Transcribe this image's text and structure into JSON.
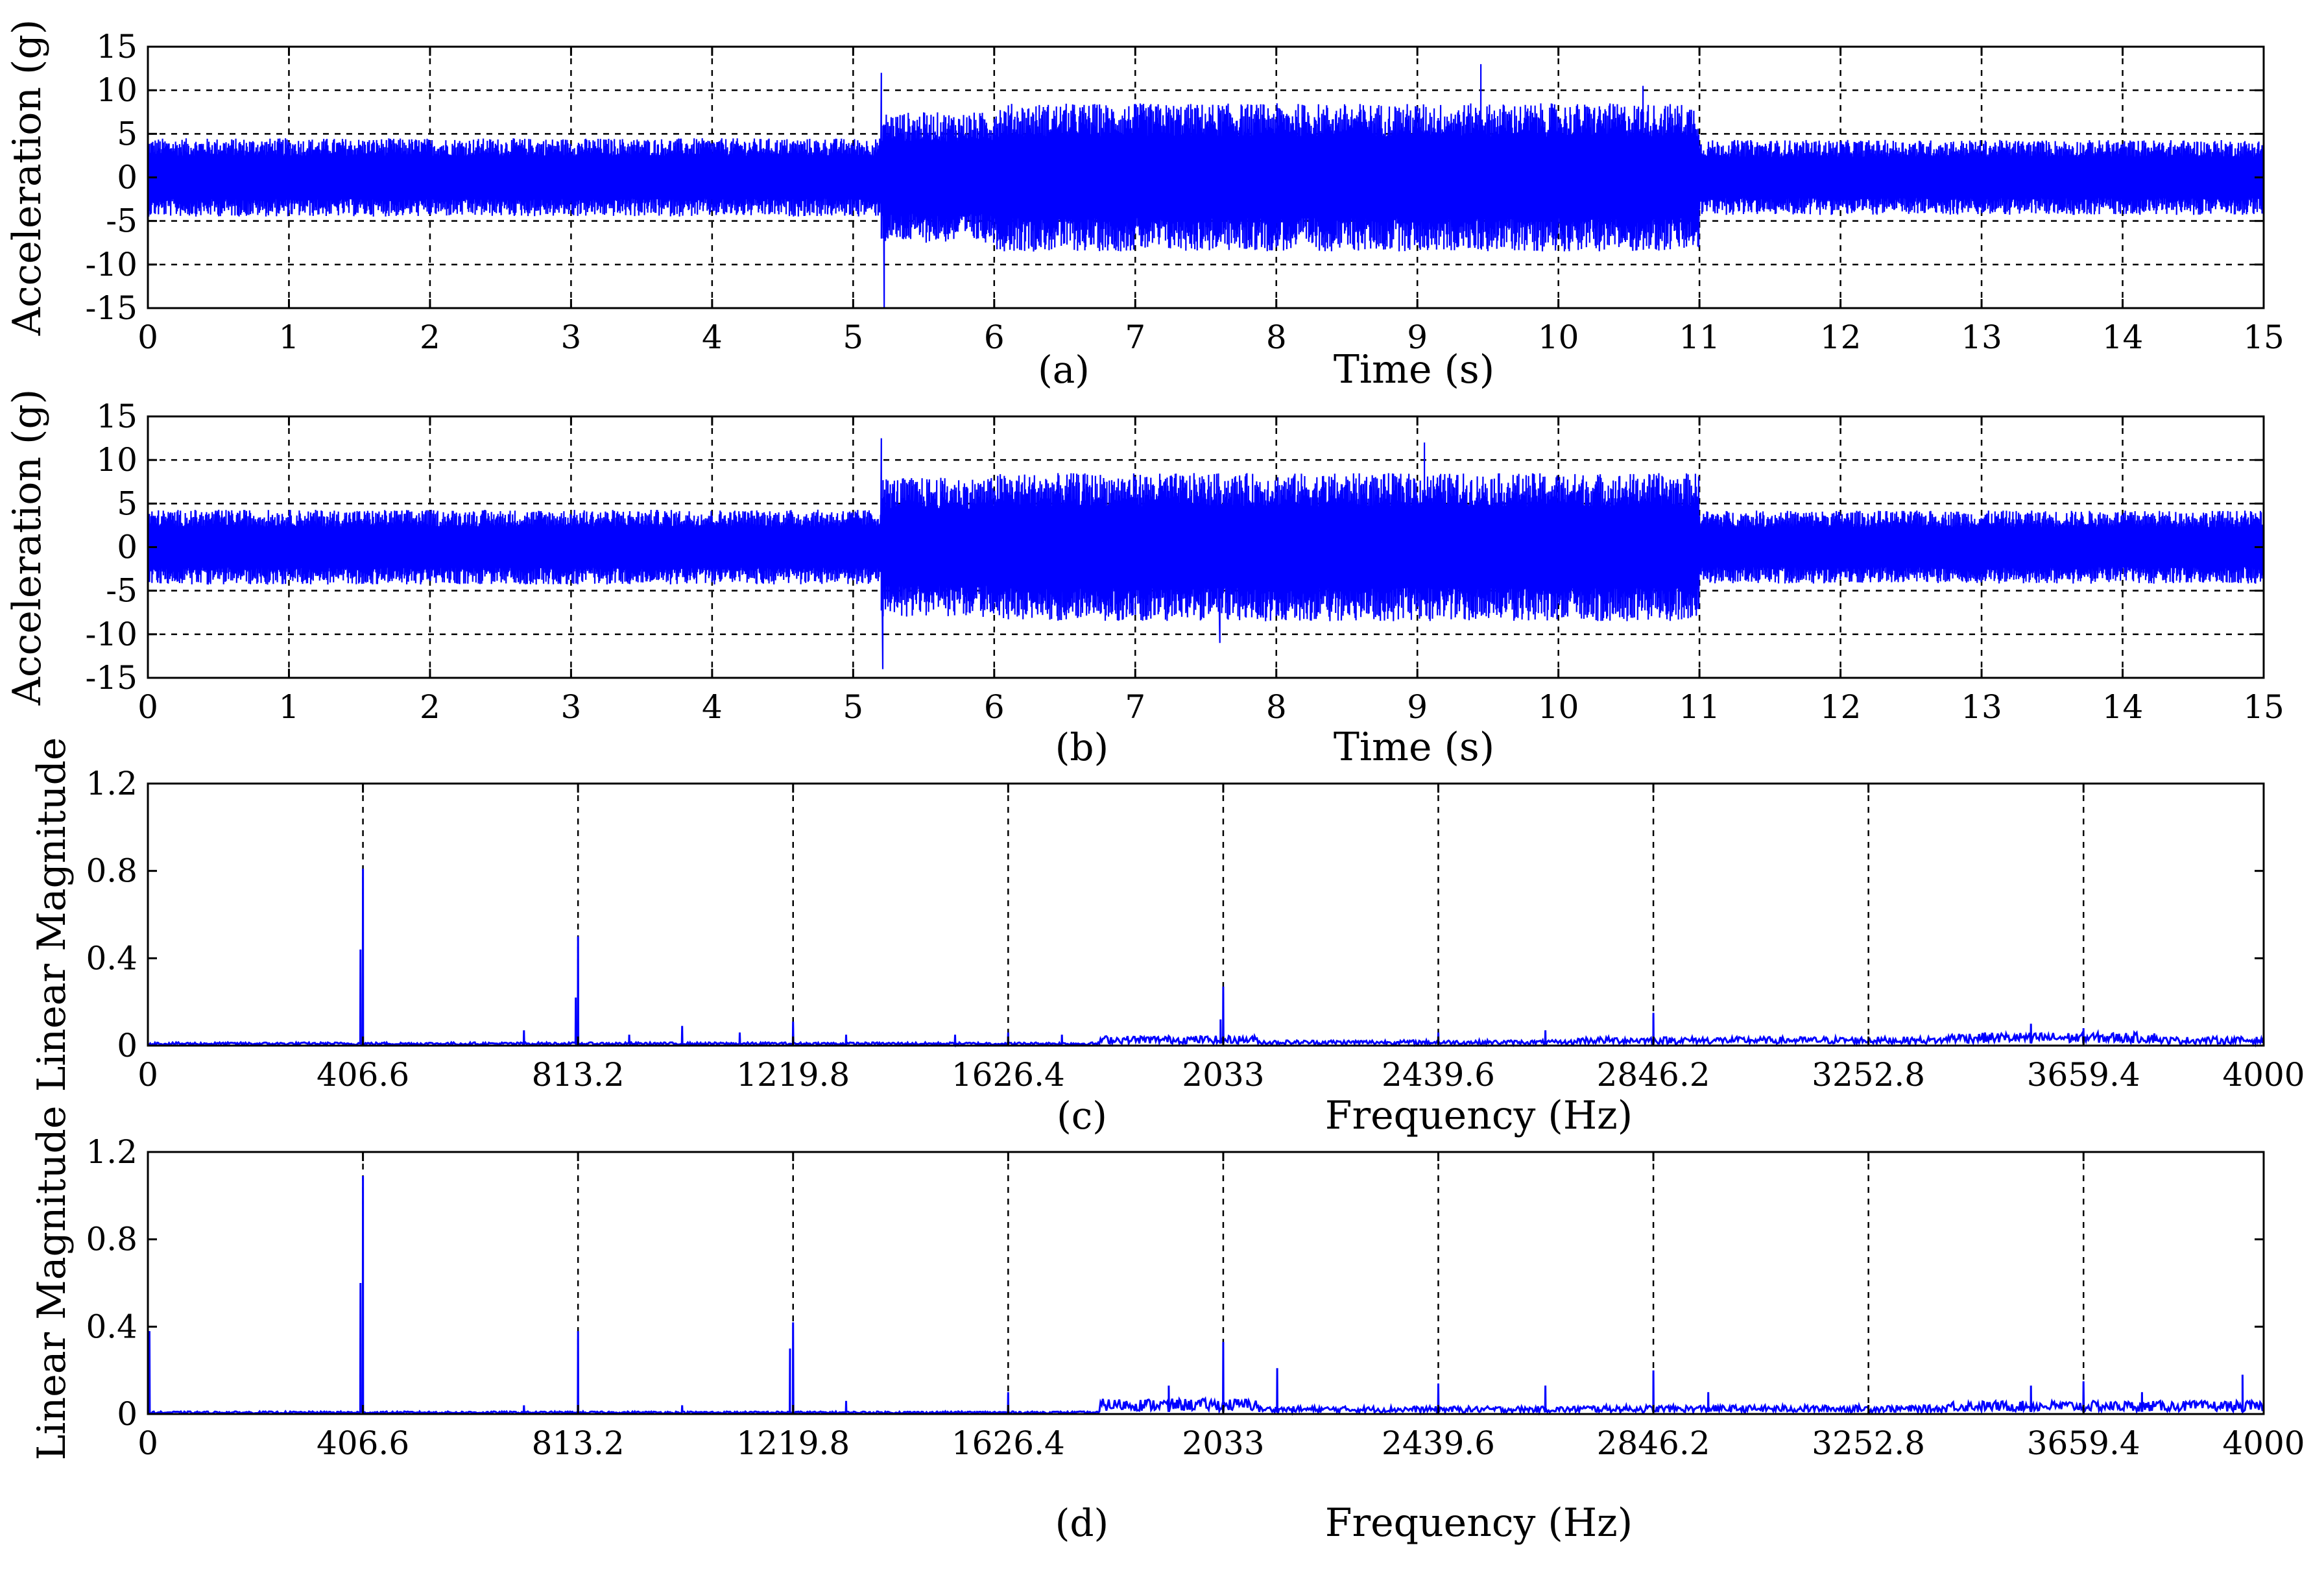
{
  "chart_data": [
    {
      "id": "a",
      "type": "line",
      "panel_label": "(a)",
      "xlabel": "Time (s)",
      "ylabel": "Acceleration (g)",
      "xlim": [
        0,
        15
      ],
      "ylim": [
        -15,
        15
      ],
      "xticks": [
        0,
        1,
        2,
        3,
        4,
        5,
        6,
        7,
        8,
        9,
        10,
        11,
        12,
        13,
        14,
        15
      ],
      "xtick_labels": [
        "0",
        "1",
        "2",
        "3",
        "4",
        "5",
        "6",
        "7",
        "8",
        "9",
        "10",
        "11",
        "12",
        "13",
        "14",
        "15"
      ],
      "yticks": [
        15,
        10,
        5,
        0,
        -5,
        -10,
        -15
      ],
      "ytick_labels": [
        "15",
        "10",
        "5",
        "0",
        "-5",
        "-10",
        "-15"
      ],
      "grid": "dashed x and y",
      "line_color": "#0000ff",
      "envelope": [
        {
          "t_start": 0,
          "t_end": 5.2,
          "amplitude": 4.5
        },
        {
          "t_start": 5.2,
          "t_end": 6.0,
          "amplitude": 7.5
        },
        {
          "t_start": 6.0,
          "t_end": 11.0,
          "amplitude": 8.5
        },
        {
          "t_start": 11.0,
          "t_end": 15,
          "amplitude": 4.3
        }
      ],
      "spikes": [
        {
          "t": 5.2,
          "value": 12
        },
        {
          "t": 5.22,
          "value": -15
        },
        {
          "t": 9.45,
          "value": 13
        },
        {
          "t": 10.6,
          "value": 10.5
        }
      ]
    },
    {
      "id": "b",
      "type": "line",
      "panel_label": "(b)",
      "xlabel": "Time (s)",
      "ylabel": "Acceleration (g)",
      "xlim": [
        0,
        15
      ],
      "ylim": [
        -15,
        15
      ],
      "xticks": [
        0,
        1,
        2,
        3,
        4,
        5,
        6,
        7,
        8,
        9,
        10,
        11,
        12,
        13,
        14,
        15
      ],
      "xtick_labels": [
        "0",
        "1",
        "2",
        "3",
        "4",
        "5",
        "6",
        "7",
        "8",
        "9",
        "10",
        "11",
        "12",
        "13",
        "14",
        "15"
      ],
      "yticks": [
        15,
        10,
        5,
        0,
        -5,
        -10,
        -15
      ],
      "ytick_labels": [
        "15",
        "10",
        "5",
        "0",
        "-5",
        "-10",
        "-15"
      ],
      "grid": "dashed x and y",
      "line_color": "#0000ff",
      "envelope": [
        {
          "t_start": 0,
          "t_end": 5.2,
          "amplitude": 4.3
        },
        {
          "t_start": 5.2,
          "t_end": 6.0,
          "amplitude": 8.0
        },
        {
          "t_start": 6.0,
          "t_end": 11.0,
          "amplitude": 8.5
        },
        {
          "t_start": 11.0,
          "t_end": 15,
          "amplitude": 4.2
        }
      ],
      "spikes": [
        {
          "t": 5.2,
          "value": 12.5
        },
        {
          "t": 5.21,
          "value": -14
        },
        {
          "t": 9.05,
          "value": 12
        },
        {
          "t": 7.6,
          "value": -11
        }
      ]
    },
    {
      "id": "c",
      "type": "line",
      "panel_label": "(c)",
      "xlabel": "Frequency (Hz)",
      "ylabel": "Linear Magnitude",
      "xlim": [
        0,
        4000
      ],
      "ylim": [
        0,
        1.2
      ],
      "xticks": [
        0,
        406.6,
        813.2,
        1219.8,
        1626.4,
        2033,
        2439.6,
        2846.2,
        3252.8,
        3659.4,
        4000
      ],
      "xtick_labels": [
        "0",
        "406.6",
        "813.2",
        "1219.8",
        "1626.4",
        "2033",
        "2439.6",
        "2846.2",
        "3252.8",
        "3659.4",
        "4000"
      ],
      "yticks": [
        0,
        0.4,
        0.8,
        1.2
      ],
      "ytick_labels": [
        "0",
        "0.4",
        "0.8",
        "1.2"
      ],
      "grid": "dashed vertical at harmonics",
      "line_color": "#0000ff",
      "peaks": [
        {
          "f": 402,
          "value": 0.44
        },
        {
          "f": 406.6,
          "value": 0.81
        },
        {
          "f": 711,
          "value": 0.07
        },
        {
          "f": 809,
          "value": 0.22
        },
        {
          "f": 813.2,
          "value": 0.5
        },
        {
          "f": 910,
          "value": 0.05
        },
        {
          "f": 1010,
          "value": 0.09
        },
        {
          "f": 1119,
          "value": 0.06
        },
        {
          "f": 1219.8,
          "value": 0.11
        },
        {
          "f": 1320,
          "value": 0.05
        },
        {
          "f": 1526,
          "value": 0.05
        },
        {
          "f": 1626.4,
          "value": 0.06
        },
        {
          "f": 1728,
          "value": 0.05
        },
        {
          "f": 2028,
          "value": 0.12
        },
        {
          "f": 2033,
          "value": 0.27
        },
        {
          "f": 2439.6,
          "value": 0.06
        },
        {
          "f": 2642,
          "value": 0.07
        },
        {
          "f": 2846.2,
          "value": 0.15
        },
        {
          "f": 3560,
          "value": 0.1
        },
        {
          "f": 3659.4,
          "value": 0.08
        }
      ],
      "noise_floor": [
        {
          "f_start": 0,
          "f_end": 1800,
          "level": 0.015
        },
        {
          "f_start": 1800,
          "f_end": 2100,
          "level": 0.045
        },
        {
          "f_start": 2100,
          "f_end": 2700,
          "level": 0.025
        },
        {
          "f_start": 2700,
          "f_end": 3400,
          "level": 0.04
        },
        {
          "f_start": 3400,
          "f_end": 3800,
          "level": 0.06
        },
        {
          "f_start": 3800,
          "f_end": 4000,
          "level": 0.04
        }
      ]
    },
    {
      "id": "d",
      "type": "line",
      "panel_label": "(d)",
      "xlabel": "Frequency (Hz)",
      "ylabel": "Linear Magnitude",
      "xlim": [
        0,
        4000
      ],
      "ylim": [
        0,
        1.2
      ],
      "xticks": [
        0,
        406.6,
        813.2,
        1219.8,
        1626.4,
        2033,
        2439.6,
        2846.2,
        3252.8,
        3659.4,
        4000
      ],
      "xtick_labels": [
        "0",
        "406.6",
        "813.2",
        "1219.8",
        "1626.4",
        "2033",
        "2439.6",
        "2846.2",
        "3252.8",
        "3659.4",
        "4000"
      ],
      "yticks": [
        0,
        0.4,
        0.8,
        1.2
      ],
      "ytick_labels": [
        "0",
        "0.4",
        "0.8",
        "1.2"
      ],
      "grid": "dashed vertical at harmonics",
      "line_color": "#0000ff",
      "peaks": [
        {
          "f": 3,
          "value": 0.38
        },
        {
          "f": 402,
          "value": 0.6
        },
        {
          "f": 406.6,
          "value": 1.09
        },
        {
          "f": 711,
          "value": 0.04
        },
        {
          "f": 813.2,
          "value": 0.38
        },
        {
          "f": 1010,
          "value": 0.04
        },
        {
          "f": 1214,
          "value": 0.3
        },
        {
          "f": 1219.8,
          "value": 0.42
        },
        {
          "f": 1320,
          "value": 0.06
        },
        {
          "f": 1626.4,
          "value": 0.1
        },
        {
          "f": 1930,
          "value": 0.13
        },
        {
          "f": 2033,
          "value": 0.33
        },
        {
          "f": 2135,
          "value": 0.21
        },
        {
          "f": 2439.6,
          "value": 0.14
        },
        {
          "f": 2642,
          "value": 0.13
        },
        {
          "f": 2846.2,
          "value": 0.2
        },
        {
          "f": 2950,
          "value": 0.1
        },
        {
          "f": 3560,
          "value": 0.13
        },
        {
          "f": 3659.4,
          "value": 0.15
        },
        {
          "f": 3770,
          "value": 0.1
        },
        {
          "f": 3960,
          "value": 0.18
        }
      ],
      "noise_floor": [
        {
          "f_start": 0,
          "f_end": 1800,
          "level": 0.012
        },
        {
          "f_start": 1800,
          "f_end": 2100,
          "level": 0.07
        },
        {
          "f_start": 2100,
          "f_end": 2700,
          "level": 0.035
        },
        {
          "f_start": 2700,
          "f_end": 3400,
          "level": 0.04
        },
        {
          "f_start": 3400,
          "f_end": 4000,
          "level": 0.06
        }
      ]
    }
  ]
}
